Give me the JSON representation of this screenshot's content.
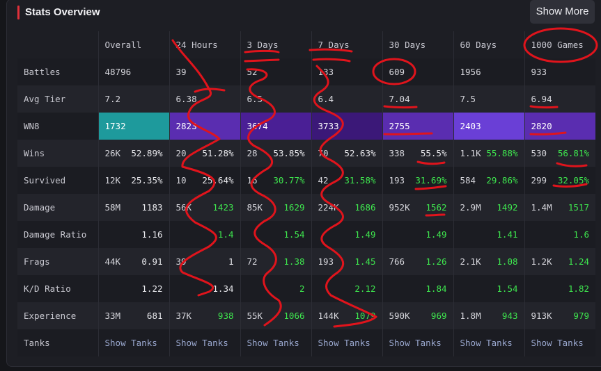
{
  "header": {
    "title": "Stats Overview",
    "show_more_label": "Show More"
  },
  "table": {
    "columns": [
      "Overall",
      "24 Hours",
      "3 Days",
      "7 Days",
      "30 Days",
      "60 Days",
      "1000 Games"
    ],
    "rows": [
      {
        "label": "Battles",
        "cells": [
          [
            "48796",
            ""
          ],
          [
            "39",
            ""
          ],
          [
            "52",
            ""
          ],
          [
            "133",
            ""
          ],
          [
            "609",
            ""
          ],
          [
            "1956",
            ""
          ],
          [
            "933",
            ""
          ]
        ]
      },
      {
        "label": "Avg Tier",
        "cells": [
          [
            "7.2",
            ""
          ],
          [
            "6.38",
            ""
          ],
          [
            "6.5",
            ""
          ],
          [
            "6.4",
            ""
          ],
          [
            "7.04",
            ""
          ],
          [
            "7.5",
            ""
          ],
          [
            "6.94",
            ""
          ]
        ]
      },
      {
        "label": "WN8",
        "cells": [
          [
            "1732",
            ""
          ],
          [
            "2823",
            ""
          ],
          [
            "3674",
            ""
          ],
          [
            "3733",
            ""
          ],
          [
            "2755",
            ""
          ],
          [
            "2403",
            ""
          ],
          [
            "2820",
            ""
          ]
        ]
      },
      {
        "label": "Wins",
        "cells": [
          [
            "26K",
            "52.89%"
          ],
          [
            "20",
            "51.28%"
          ],
          [
            "28",
            "53.85%"
          ],
          [
            "70",
            "52.63%"
          ],
          [
            "338",
            "55.5%"
          ],
          [
            "1.1K",
            "55.88%"
          ],
          [
            "530",
            "56.81%"
          ]
        ]
      },
      {
        "label": "Survived",
        "cells": [
          [
            "12K",
            "25.35%"
          ],
          [
            "10",
            "25.64%"
          ],
          [
            "16",
            "30.77%"
          ],
          [
            "42",
            "31.58%"
          ],
          [
            "193",
            "31.69%"
          ],
          [
            "584",
            "29.86%"
          ],
          [
            "299",
            "32.05%"
          ]
        ]
      },
      {
        "label": "Damage",
        "cells": [
          [
            "58M",
            "1183"
          ],
          [
            "56K",
            "1423"
          ],
          [
            "85K",
            "1629"
          ],
          [
            "224K",
            "1686"
          ],
          [
            "952K",
            "1562"
          ],
          [
            "2.9M",
            "1492"
          ],
          [
            "1.4M",
            "1517"
          ]
        ]
      },
      {
        "label": "Damage Ratio",
        "cells": [
          [
            "",
            "1.16"
          ],
          [
            "",
            "1.4"
          ],
          [
            "",
            "1.54"
          ],
          [
            "",
            "1.49"
          ],
          [
            "",
            "1.49"
          ],
          [
            "",
            "1.41"
          ],
          [
            "",
            "1.6"
          ]
        ]
      },
      {
        "label": "Frags",
        "cells": [
          [
            "44K",
            "0.91"
          ],
          [
            "39",
            "1"
          ],
          [
            "72",
            "1.38"
          ],
          [
            "193",
            "1.45"
          ],
          [
            "766",
            "1.26"
          ],
          [
            "2.1K",
            "1.08"
          ],
          [
            "1.2K",
            "1.24"
          ]
        ]
      },
      {
        "label": "K/D Ratio",
        "cells": [
          [
            "",
            "1.22"
          ],
          [
            "",
            "1.34"
          ],
          [
            "",
            "2"
          ],
          [
            "",
            "2.12"
          ],
          [
            "",
            "1.84"
          ],
          [
            "",
            "1.54"
          ],
          [
            "",
            "1.82"
          ]
        ]
      },
      {
        "label": "Experience",
        "cells": [
          [
            "33M",
            "681"
          ],
          [
            "37K",
            "938"
          ],
          [
            "55K",
            "1066"
          ],
          [
            "144K",
            "1079"
          ],
          [
            "590K",
            "969"
          ],
          [
            "1.8M",
            "943"
          ],
          [
            "913K",
            "979"
          ]
        ]
      },
      {
        "label": "Tanks",
        "cells": [
          [
            "Show Tanks",
            ""
          ],
          [
            "Show Tanks",
            ""
          ],
          [
            "Show Tanks",
            ""
          ],
          [
            "Show Tanks",
            ""
          ],
          [
            "Show Tanks",
            ""
          ],
          [
            "Show Tanks",
            ""
          ],
          [
            "Show Tanks",
            ""
          ]
        ]
      }
    ],
    "wn8_colors": [
      "#1e9a9c",
      "#5a2db0",
      "#4a1f95",
      "#3b1878",
      "#5a2db0",
      "#6a3fd6",
      "#5a2db0"
    ],
    "value_colors": {
      "Wins": [
        "w",
        "w",
        "w",
        "w",
        "w",
        "g",
        "g"
      ],
      "Survived": [
        "w",
        "w",
        "g",
        "g",
        "g",
        "g",
        "g"
      ],
      "Damage": [
        "w",
        "g",
        "g",
        "g",
        "g",
        "g",
        "g"
      ],
      "Damage Ratio": [
        "w",
        "g",
        "g",
        "g",
        "g",
        "g",
        "g"
      ],
      "Frags": [
        "w",
        "w",
        "g",
        "g",
        "g",
        "g",
        "g"
      ],
      "K/D Ratio": [
        "w",
        "w",
        "g",
        "g",
        "g",
        "g",
        "g"
      ],
      "Experience": [
        "w",
        "g",
        "g",
        "g",
        "g",
        "g",
        "g"
      ]
    },
    "annotation_color": "#e0141c"
  }
}
